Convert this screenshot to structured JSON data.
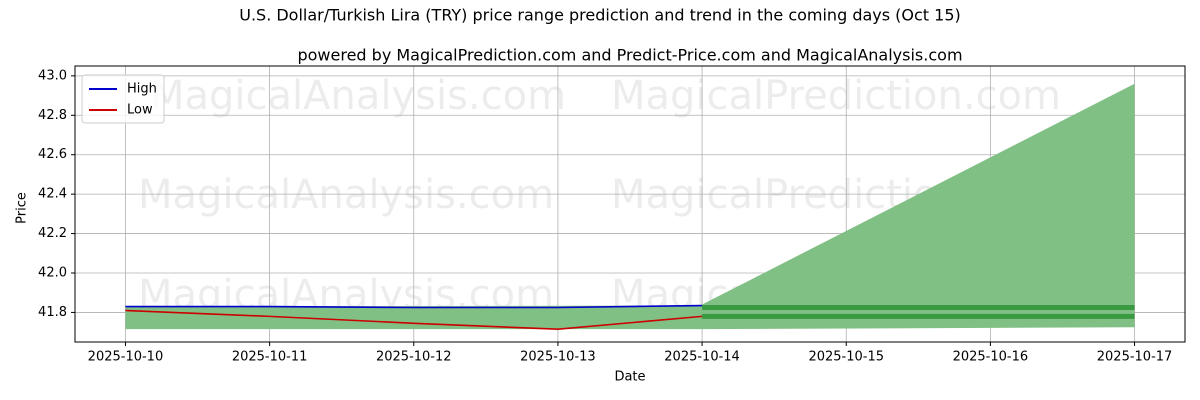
{
  "chart_data": {
    "type": "line",
    "title": "U.S. Dollar/Turkish Lira (TRY) price range prediction and trend in the coming days (Oct 15)",
    "subtitle": "powered by MagicalPrediction.com and Predict-Price.com and MagicalAnalysis.com",
    "x_label": "Date",
    "y_label": "Price",
    "x": [
      "2025-10-10",
      "2025-10-11",
      "2025-10-12",
      "2025-10-13",
      "2025-10-14"
    ],
    "series": [
      {
        "name": "High",
        "color": "#0000cc",
        "values": [
          41.83,
          41.83,
          41.825,
          41.825,
          41.835
        ]
      },
      {
        "name": "Low",
        "color": "#cc0000",
        "values": [
          41.81,
          41.78,
          41.745,
          41.715,
          41.78
        ]
      }
    ],
    "areas": [
      {
        "color": "#81c084",
        "x": [
          "2025-10-10",
          "2025-10-14"
        ],
        "upper": [
          41.83,
          41.835
        ],
        "lower": [
          41.715,
          41.715
        ]
      },
      {
        "color": "#81c084",
        "x": [
          "2025-10-14",
          "2025-10-17"
        ],
        "upper": [
          41.84,
          42.96
        ],
        "lower": [
          41.715,
          41.725
        ]
      }
    ],
    "lines": [
      {
        "color": "#3a9a3f",
        "x": [
          "2025-10-14",
          "2025-10-17"
        ],
        "values": [
          41.825,
          41.825
        ]
      },
      {
        "color": "#3a9a3f",
        "x": [
          "2025-10-14",
          "2025-10-17"
        ],
        "values": [
          41.78,
          41.78
        ]
      }
    ],
    "ylim": [
      41.65,
      43.05
    ],
    "yticks": [
      {
        "value": 41.8,
        "label": "41.8"
      },
      {
        "value": 42.0,
        "label": "42.0"
      },
      {
        "value": 42.2,
        "label": "42.2"
      },
      {
        "value": 42.4,
        "label": "42.4"
      },
      {
        "value": 42.6,
        "label": "42.6"
      },
      {
        "value": 42.8,
        "label": "42.8"
      },
      {
        "value": 43.0,
        "label": "43.0"
      }
    ],
    "xticks": [
      "2025-10-10",
      "2025-10-11",
      "2025-10-12",
      "2025-10-13",
      "2025-10-14",
      "2025-10-15",
      "2025-10-16",
      "2025-10-17"
    ],
    "grid": true,
    "legend": "upper-left",
    "watermarks": [
      "MagicalAnalysis.com",
      "MagicalPrediction.com"
    ]
  }
}
